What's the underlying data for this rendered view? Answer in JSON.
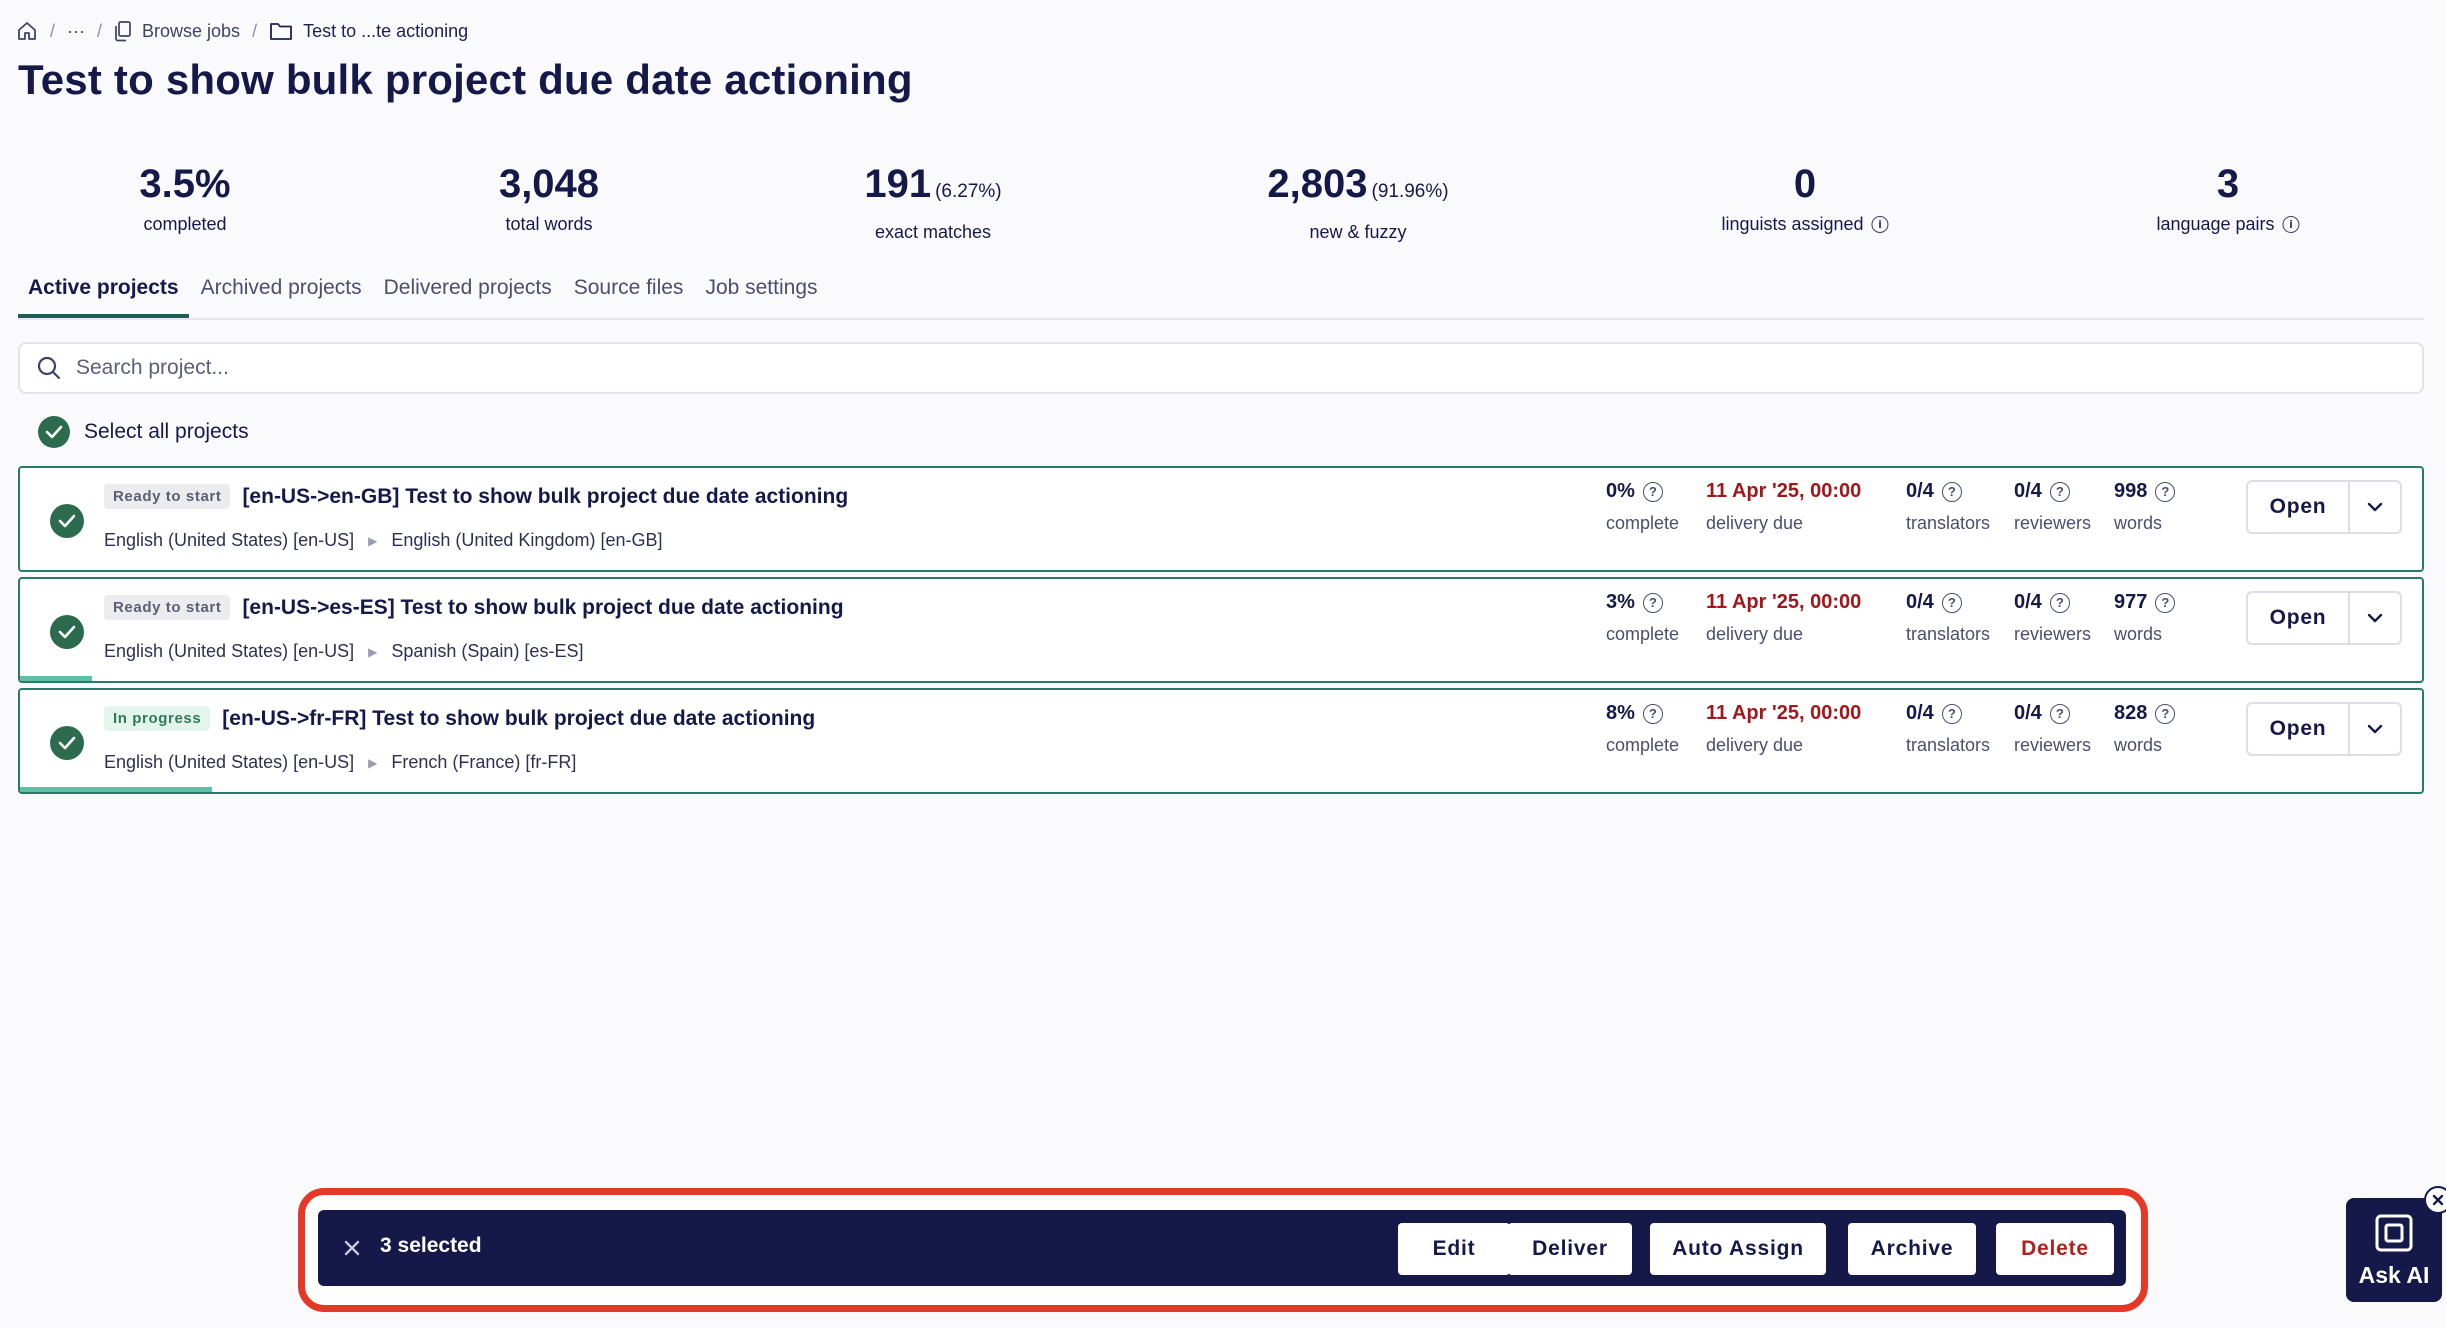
{
  "breadcrumb": {
    "more": "···",
    "browse_jobs": "Browse jobs",
    "current": "Test to ...te actioning"
  },
  "page_title": "Test to show bulk project due date actioning",
  "stats": [
    {
      "value": "3.5%",
      "extra": "",
      "label": "completed",
      "info": false
    },
    {
      "value": "3,048",
      "extra": "",
      "label": "total words",
      "info": false
    },
    {
      "value": "191",
      "extra": "(6.27%)",
      "label": "exact matches",
      "info": false
    },
    {
      "value": "2,803",
      "extra": "(91.96%)",
      "label": "new & fuzzy",
      "info": false
    },
    {
      "value": "0",
      "extra": "",
      "label": "linguists assigned",
      "info": true
    },
    {
      "value": "3",
      "extra": "",
      "label": "language pairs",
      "info": true
    }
  ],
  "tabs": [
    "Active projects",
    "Archived projects",
    "Delivered projects",
    "Source files",
    "Job settings"
  ],
  "search": {
    "placeholder": "Search project..."
  },
  "select_all_label": "Select all projects",
  "projects": [
    {
      "status": "Ready to start",
      "name": "[en-US->en-GB] Test to show bulk project due date actioning",
      "source_lang": "English (United States) [en-US]",
      "target_lang": "English (United Kingdom) [en-GB]",
      "complete_value": "0%",
      "complete_label": "complete",
      "due_value": "11 Apr '25, 00:00",
      "due_label": "delivery due",
      "translators_value": "0/4",
      "translators_label": "translators",
      "reviewers_value": "0/4",
      "reviewers_label": "reviewers",
      "words_value": "998",
      "words_label": "words",
      "progress": 0.0
    },
    {
      "status": "Ready to start",
      "name": "[en-US->es-ES] Test to show bulk project due date actioning",
      "source_lang": "English (United States) [en-US]",
      "target_lang": "Spanish (Spain) [es-ES]",
      "complete_value": "3%",
      "complete_label": "complete",
      "due_value": "11 Apr '25, 00:00",
      "due_label": "delivery due",
      "translators_value": "0/4",
      "translators_label": "translators",
      "reviewers_value": "0/4",
      "reviewers_label": "reviewers",
      "words_value": "977",
      "words_label": "words",
      "progress": 0.03
    },
    {
      "status": "In progress",
      "name": "[en-US->fr-FR] Test to show bulk project due date actioning",
      "source_lang": "English (United States) [en-US]",
      "target_lang": "French (France) [fr-FR]",
      "complete_value": "8%",
      "complete_label": "complete",
      "due_value": "11 Apr '25, 00:00",
      "due_label": "delivery due",
      "translators_value": "0/4",
      "translators_label": "translators",
      "reviewers_value": "0/4",
      "reviewers_label": "reviewers",
      "words_value": "828",
      "words_label": "words",
      "progress": 0.08
    }
  ],
  "open_label": "Open",
  "bulk_bar": {
    "count_label": "3 selected",
    "buttons": [
      "Edit",
      "Deliver",
      "Auto Assign",
      "Archive",
      "Delete"
    ]
  },
  "ask_ai_label": "Ask AI",
  "colors": {
    "navy": "#15194a",
    "accent_green": "#2d6b4f",
    "progress_fill": "#5fc0a6",
    "due_red": "#a3161a",
    "highlight_outline": "#e63826"
  }
}
